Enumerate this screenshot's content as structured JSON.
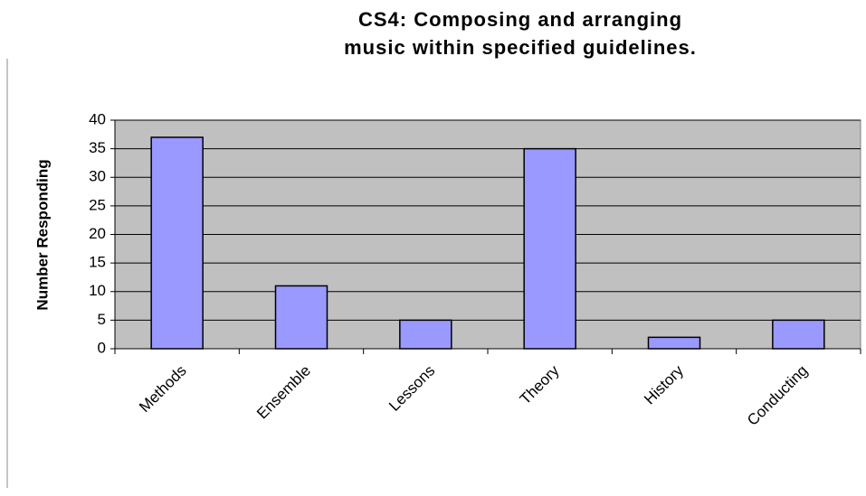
{
  "chart_data": {
    "type": "bar",
    "title": "CS4: Composing and arranging music within specified guidelines.",
    "y_label": "Number Responding",
    "categories": [
      "Methods",
      "Ensemble",
      "Lessons",
      "Theory",
      "History",
      "Conducting"
    ],
    "values": [
      37,
      11,
      5,
      35,
      2,
      5
    ],
    "color": "#9999ff",
    "ylim": [
      0,
      40
    ],
    "yticks": [
      0,
      5,
      10,
      15,
      20,
      25,
      30,
      35,
      40
    ],
    "grid": true
  }
}
